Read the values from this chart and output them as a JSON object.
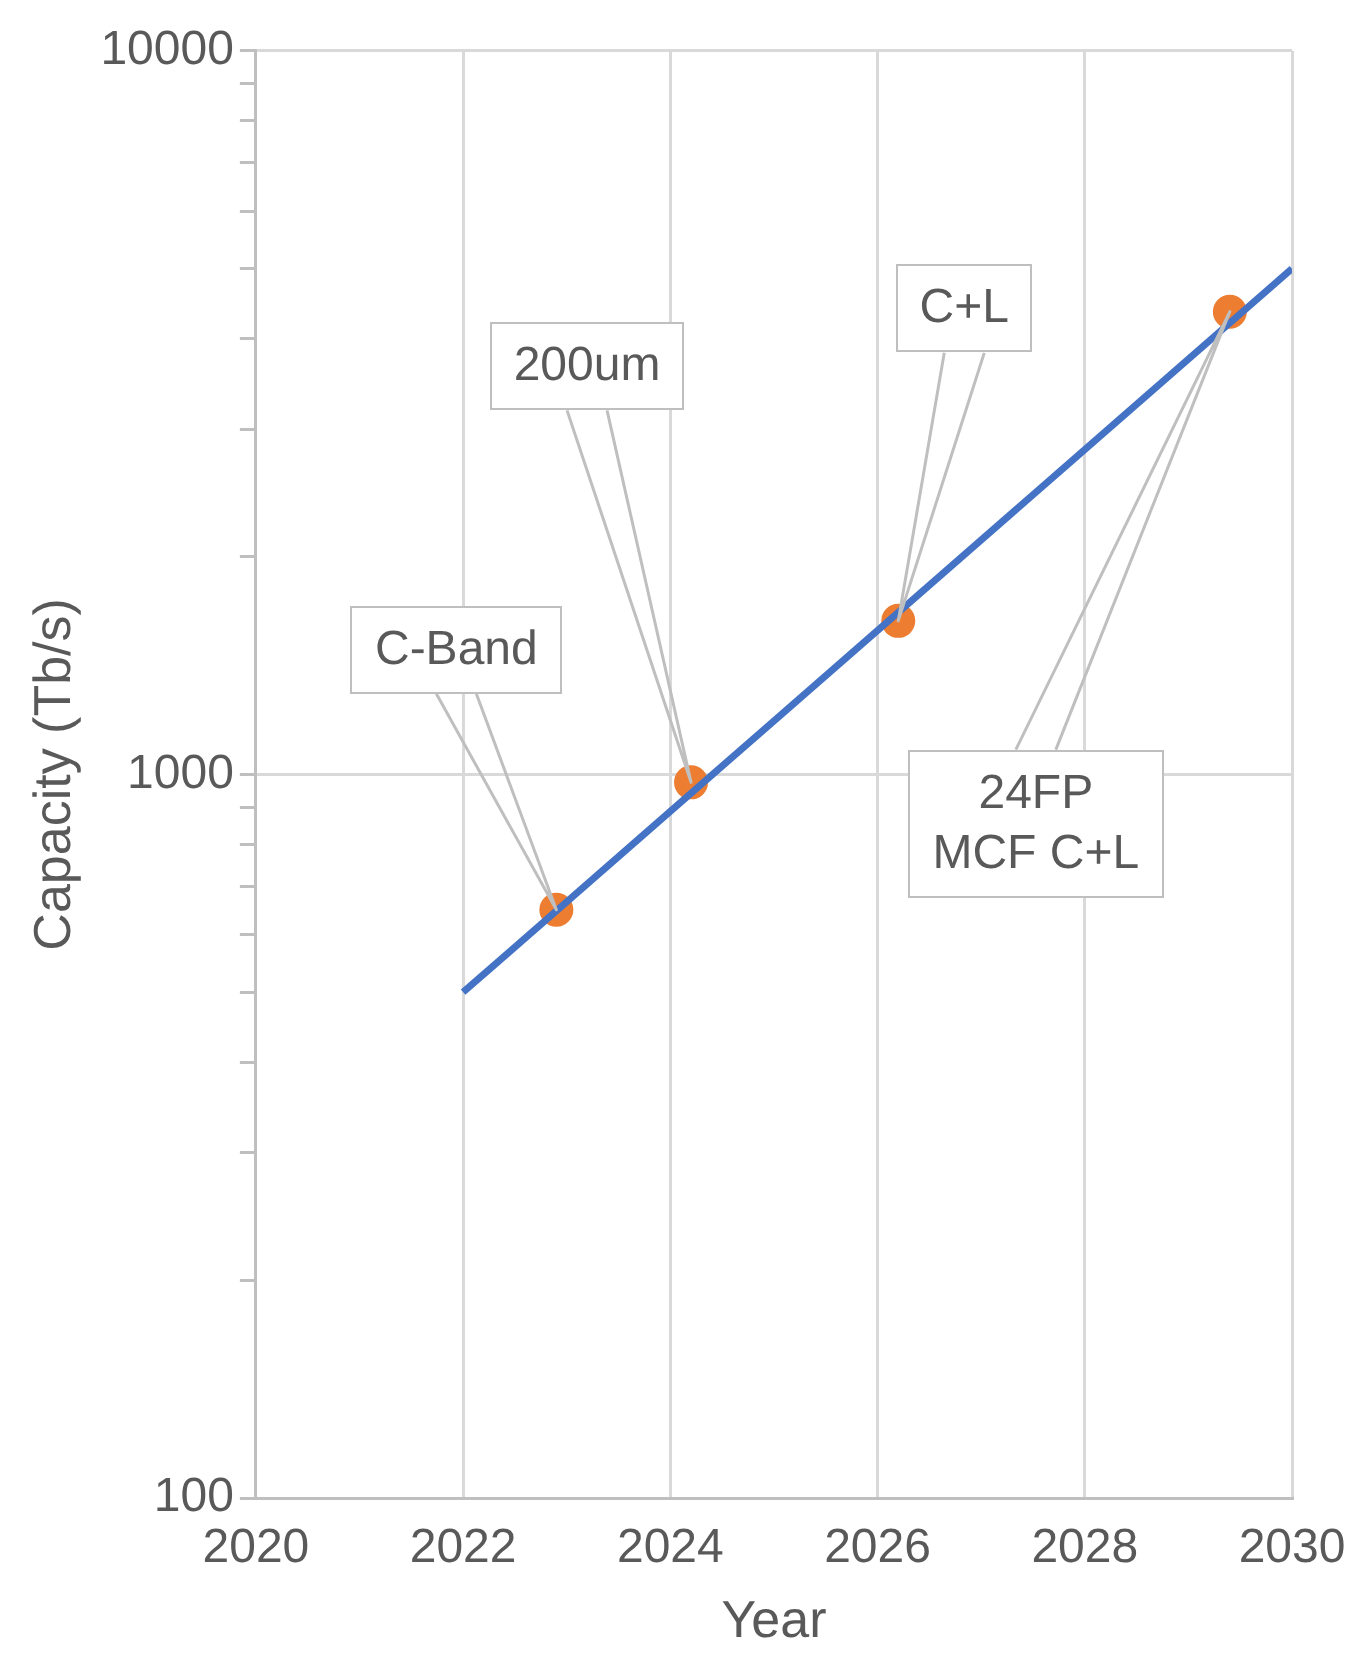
{
  "chart_data": {
    "type": "line",
    "xlabel": "Year",
    "ylabel": "Capacity (Tb/s)",
    "log": "y",
    "grid": true,
    "legend": false,
    "xlim": [
      2020,
      2030
    ],
    "xticks": [
      2020,
      2022,
      2024,
      2026,
      2028,
      2030
    ],
    "ylim": [
      100,
      10000
    ],
    "yticks": [
      100,
      {
        "value": 200,
        "label": null
      },
      {
        "value": 300,
        "label": null
      },
      {
        "value": 400,
        "label": null
      },
      {
        "value": 500,
        "label": null
      },
      {
        "value": 600,
        "label": null
      },
      {
        "value": 700,
        "label": null
      },
      {
        "value": 800,
        "label": null
      },
      {
        "value": 900,
        "label": null
      },
      1000,
      {
        "value": 2000,
        "label": null
      },
      {
        "value": 3000,
        "label": null
      },
      {
        "value": 4000,
        "label": null
      },
      {
        "value": 5000,
        "label": null
      },
      {
        "value": 6000,
        "label": null
      },
      {
        "value": 7000,
        "label": null
      },
      {
        "value": 8000,
        "label": null
      },
      {
        "value": 9000,
        "label": null
      },
      10000
    ],
    "series": [
      {
        "type": "line",
        "color": "#4472c4",
        "marker": "none",
        "x": [
          2022,
          2030
        ],
        "values": [
          500,
          5000
        ]
      },
      {
        "type": "scatter",
        "color": "#ed7d31",
        "marker": "circle",
        "x": [
          2022.9,
          2024.2,
          2026.2,
          2029.4
        ],
        "values": [
          650,
          975,
          1630,
          4360
        ]
      }
    ],
    "annotations": [
      "C-Band",
      "200um",
      "C+L",
      "24FP\nMCF C+L"
    ]
  }
}
